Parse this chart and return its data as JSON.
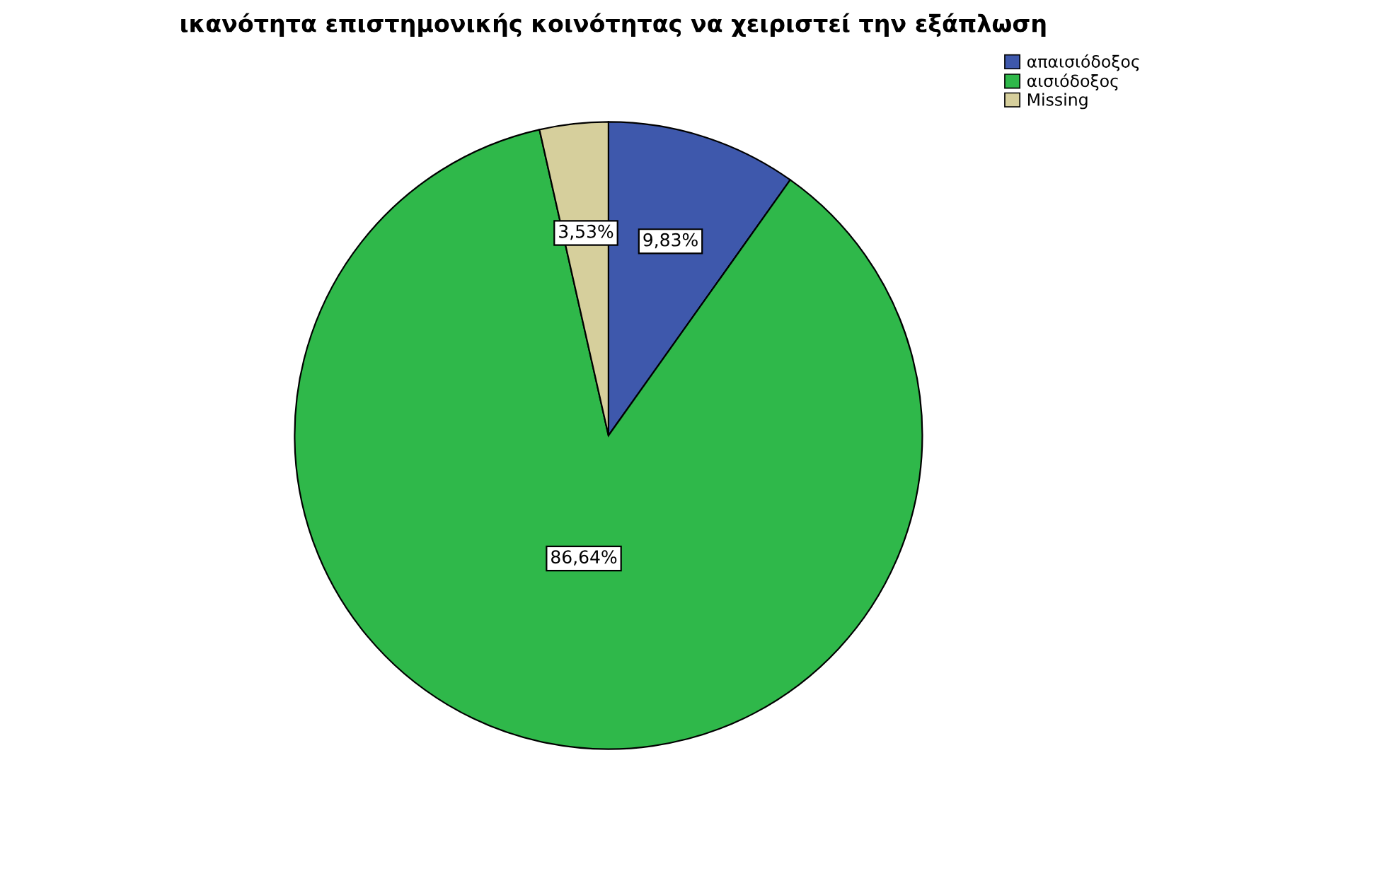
{
  "chart_data": {
    "type": "pie",
    "title": "ικανότητα επιστημονικής κοινότητας να χειριστεί την εξάπλωση",
    "categories": [
      "απαισιόδοξος",
      "αισιόδοξος",
      "Missing"
    ],
    "values": [
      9.83,
      86.64,
      3.53
    ],
    "value_labels": [
      "9,83%",
      "86,64%",
      "3,53%"
    ],
    "colors": [
      "#3e58ac",
      "#2fb84a",
      "#d6cf9c"
    ],
    "legend": "top right"
  }
}
